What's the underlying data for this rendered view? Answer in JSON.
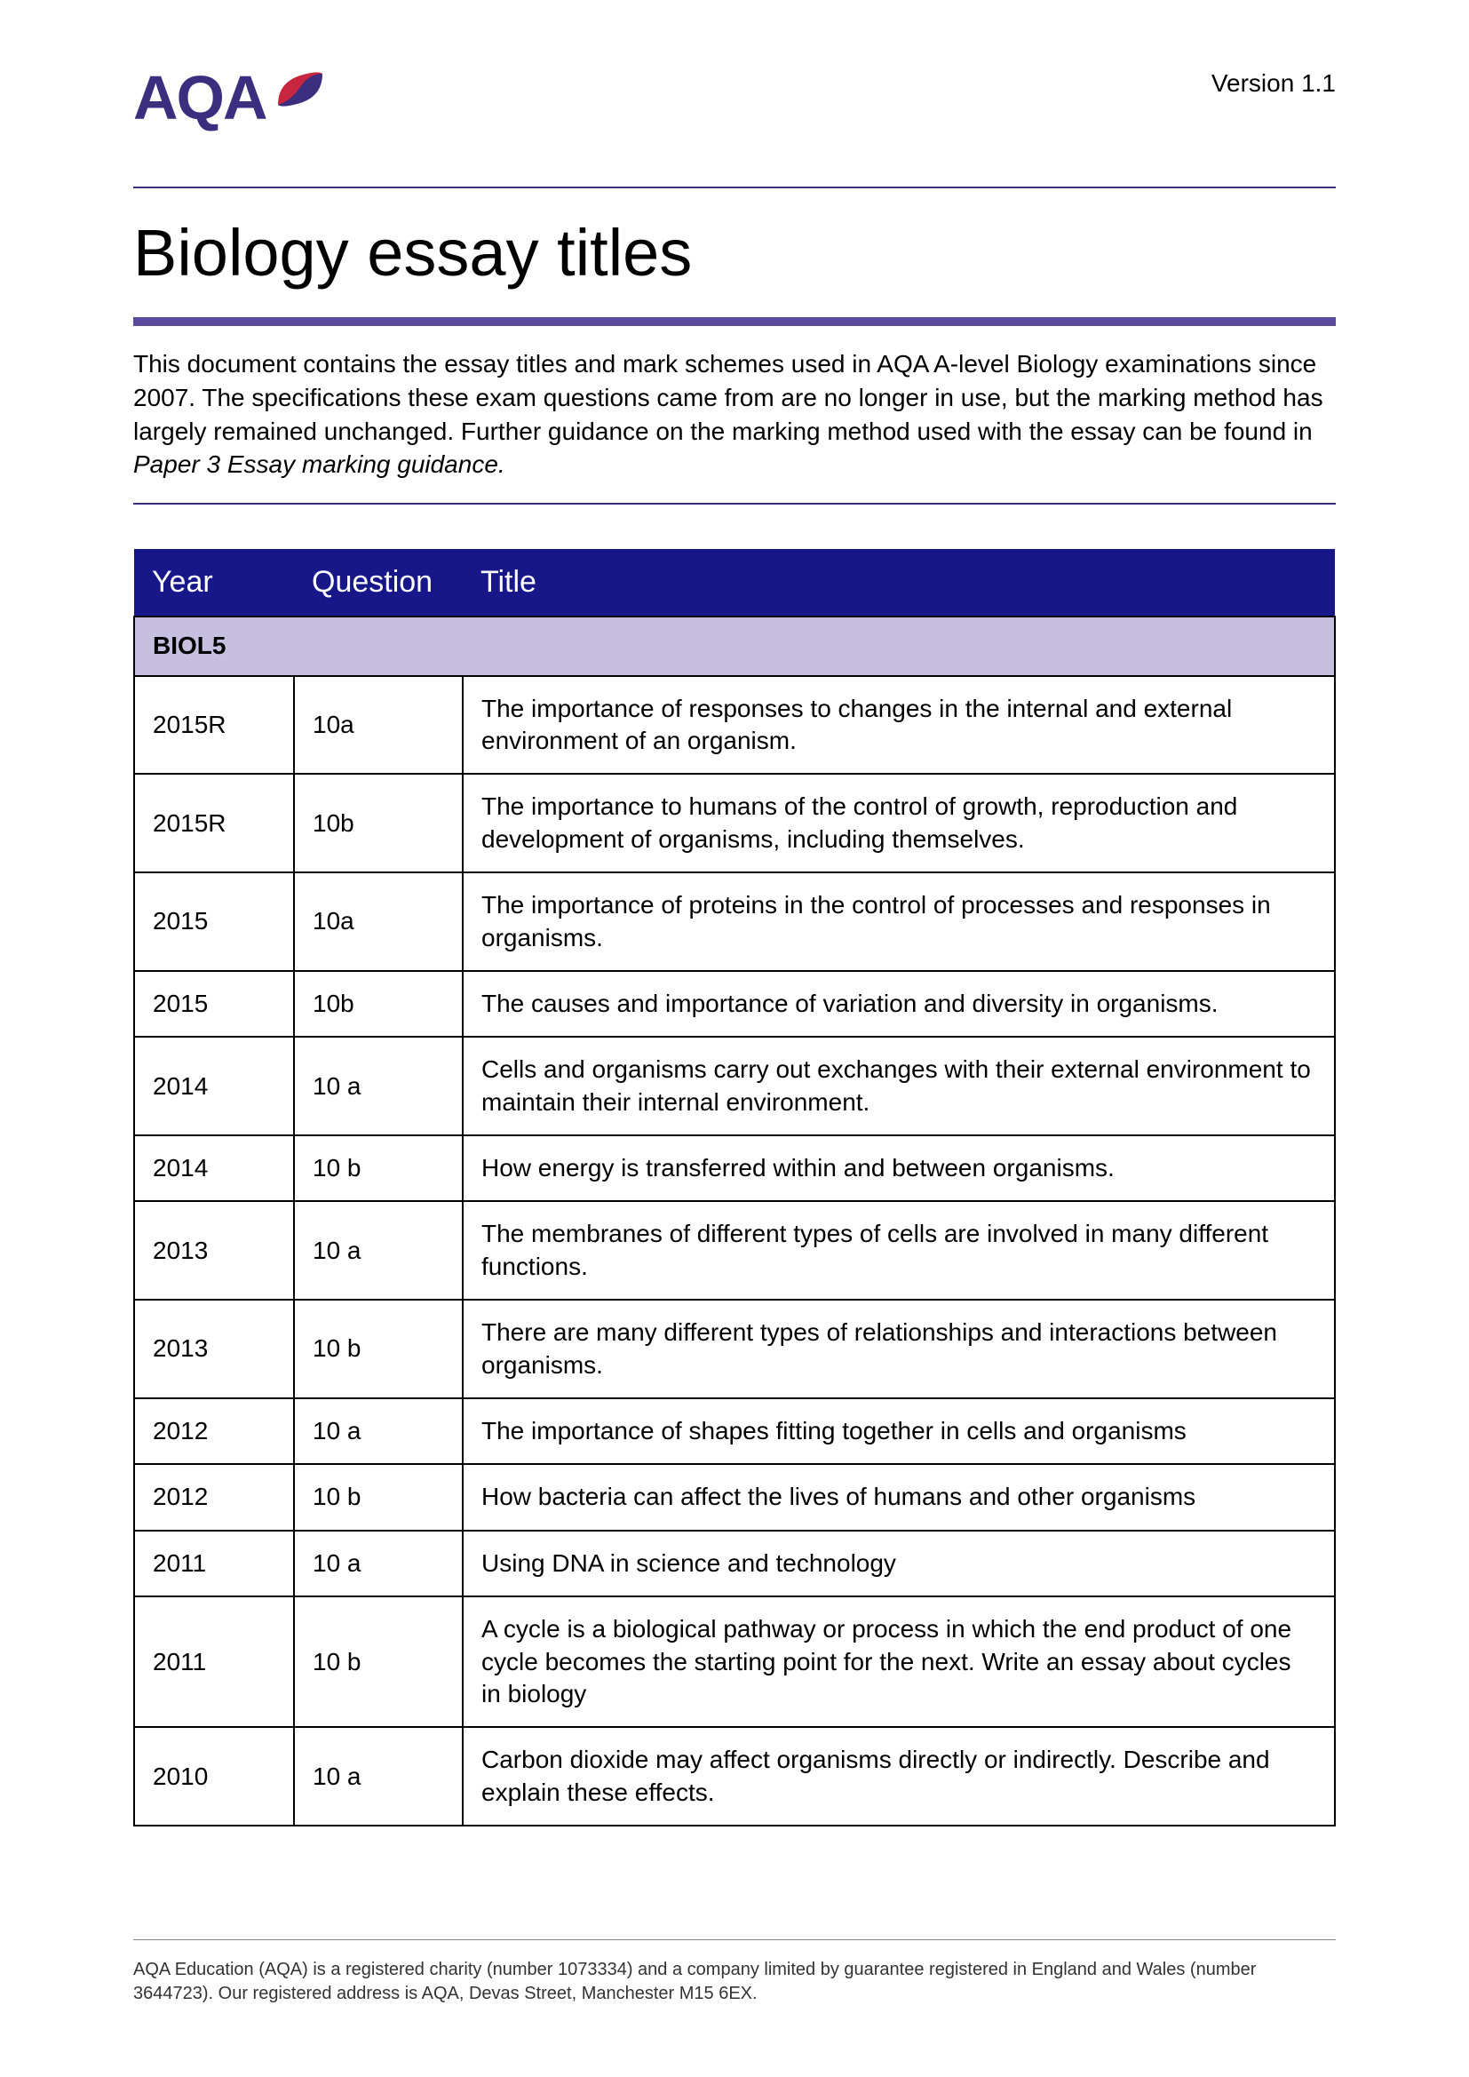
{
  "header": {
    "logo_text": "AQA",
    "version": "Version 1.1"
  },
  "title": "Biology essay titles",
  "intro": {
    "text_before_em": "This document contains the essay titles and mark schemes used in AQA A-level Biology examinations since 2007. The specifications these exam questions came from are no longer in use, but the marking method has largely remained unchanged. Further guidance on the marking method used with the essay can be found in ",
    "em": "Paper 3 Essay marking guidance.",
    "text_after_em": ""
  },
  "table": {
    "headers": [
      "Year",
      "Question",
      "Title"
    ],
    "section_label": "BIOL5",
    "rows": [
      {
        "year": "2015R",
        "q": "10a",
        "title": "The importance of responses to changes in the internal and external environment of an organism."
      },
      {
        "year": "2015R",
        "q": "10b",
        "title": "The importance to humans of the control of growth, reproduction and development of organisms, including themselves."
      },
      {
        "year": "2015",
        "q": "10a",
        "title": "The importance of proteins in the control of processes and responses in organisms."
      },
      {
        "year": "2015",
        "q": "10b",
        "title": "The causes and importance of variation and diversity in organisms."
      },
      {
        "year": "2014",
        "q": "10 a",
        "title": "Cells and organisms carry out exchanges with their external environment to maintain their internal environment."
      },
      {
        "year": "2014",
        "q": "10 b",
        "title": "How energy is transferred within and between organisms."
      },
      {
        "year": "2013",
        "q": "10 a",
        "title": "The membranes of different types of cells are involved in many different functions."
      },
      {
        "year": "2013",
        "q": "10 b",
        "title": "There are many different types of relationships and interactions between organisms."
      },
      {
        "year": "2012",
        "q": "10 a",
        "title": "The importance of shapes fitting together in cells and organisms"
      },
      {
        "year": "2012",
        "q": "10 b",
        "title": "How bacteria can affect the lives of humans and other organisms"
      },
      {
        "year": "2011",
        "q": "10 a",
        "title": "Using DNA in science and technology"
      },
      {
        "year": "2011",
        "q": "10 b",
        "title": "A cycle is a biological pathway or process in which the end product of one cycle becomes the starting point for the next. Write an essay about cycles in biology"
      },
      {
        "year": "2010",
        "q": "10 a",
        "title": "Carbon dioxide may affect organisms directly or indirectly. Describe and explain these effects."
      }
    ]
  },
  "footer": "AQA Education (AQA) is a registered charity (number 1073334) and a company limited by guarantee registered in England and Wales (number 3644723). Our registered address is AQA, Devas Street, Manchester M15 6EX.",
  "colors": {
    "brand_purple": "#3b2e7e",
    "rule_purple": "#5b4a9e",
    "table_header_bg": "#17178a",
    "section_bg": "#c6bfe0",
    "logo_red": "#c8253e"
  }
}
